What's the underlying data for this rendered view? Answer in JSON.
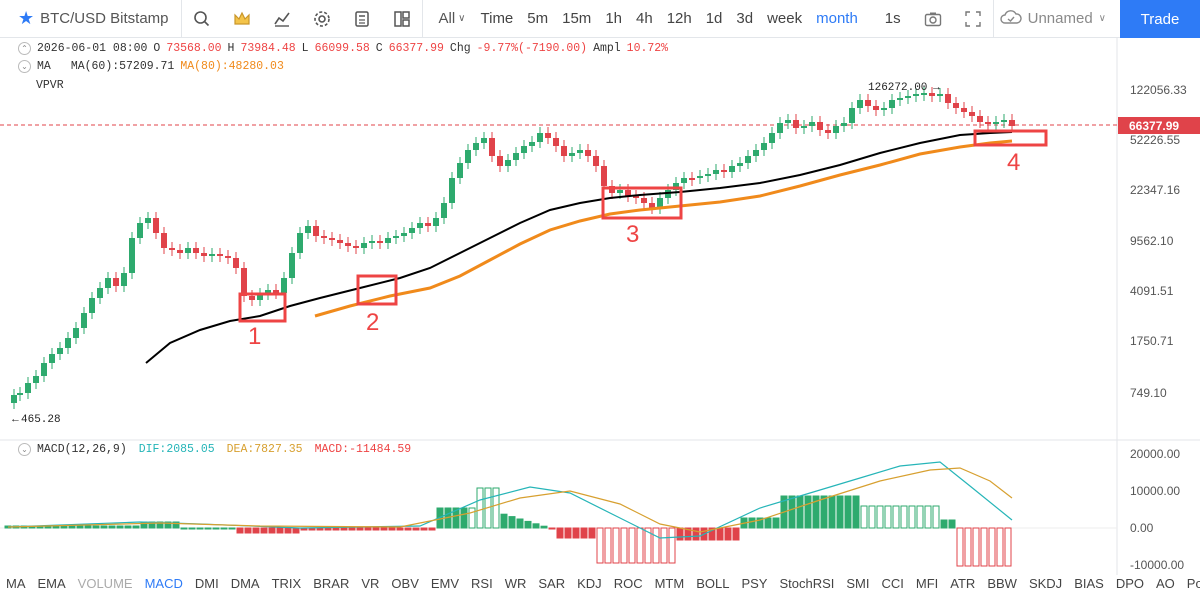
{
  "toolbar": {
    "symbol": "BTC/USD Bitstamp",
    "all_label": "All",
    "intervals": [
      "Time",
      "5m",
      "15m",
      "1h",
      "4h",
      "12h",
      "1d",
      "3d",
      "week",
      "month"
    ],
    "active_interval": "month",
    "replay_label": "1s",
    "save_label": "Unnamed",
    "trade_label": "Trade"
  },
  "legend": {
    "date": "2026-06-01 08:00",
    "o_label": "O",
    "o": "73568.00",
    "h_label": "H",
    "h": "73984.48",
    "l_label": "L",
    "l": "66099.58",
    "c_label": "C",
    "c": "66377.99",
    "chg_label": "Chg",
    "chg": "-9.77%(-7190.00)",
    "ampl_label": "Ampl",
    "ampl": "10.72%",
    "ma_name": "MA",
    "ma60": "MA(60):57209.71",
    "ma80": "MA(80):48280.03",
    "vpvr": "VPVR"
  },
  "price_axis": [
    "122056.33",
    "52226.55",
    "22347.16",
    "9562.10",
    "4091.51",
    "1750.71",
    "749.10"
  ],
  "current_price": "66377.99",
  "markers": {
    "high": "126272.00",
    "low": "465.28"
  },
  "annotations": [
    "1",
    "2",
    "3",
    "4"
  ],
  "macd": {
    "name": "MACD(12,26,9)",
    "dif": "DIF:2085.05",
    "dea": "DEA:7827.35",
    "macd": "MACD:-11484.59",
    "axis": [
      "20000.00",
      "10000.00",
      "0.00",
      "-10000.00"
    ]
  },
  "indicators": [
    "MA",
    "EMA",
    "VOLUME",
    "MACD",
    "DMI",
    "DMA",
    "TRIX",
    "BRAR",
    "VR",
    "OBV",
    "EMV",
    "RSI",
    "WR",
    "SAR",
    "KDJ",
    "ROC",
    "MTM",
    "BOLL",
    "PSY",
    "StochRSI",
    "SMI",
    "CCI",
    "MFI",
    "ATR",
    "BBW",
    "SKDJ",
    "BIAS",
    "DPO",
    "AO",
    "Position"
  ],
  "active_indicator": "MACD",
  "dim_indicator": "VOLUME",
  "colors": {
    "up": "#2eaa6e",
    "down": "#e0434a",
    "accent": "#2e7bf6",
    "ma60": "#000000",
    "ma80": "#f08a1b",
    "dif": "#26b5b8",
    "dea": "#d7a030",
    "annotation": "#ee4444"
  }
}
